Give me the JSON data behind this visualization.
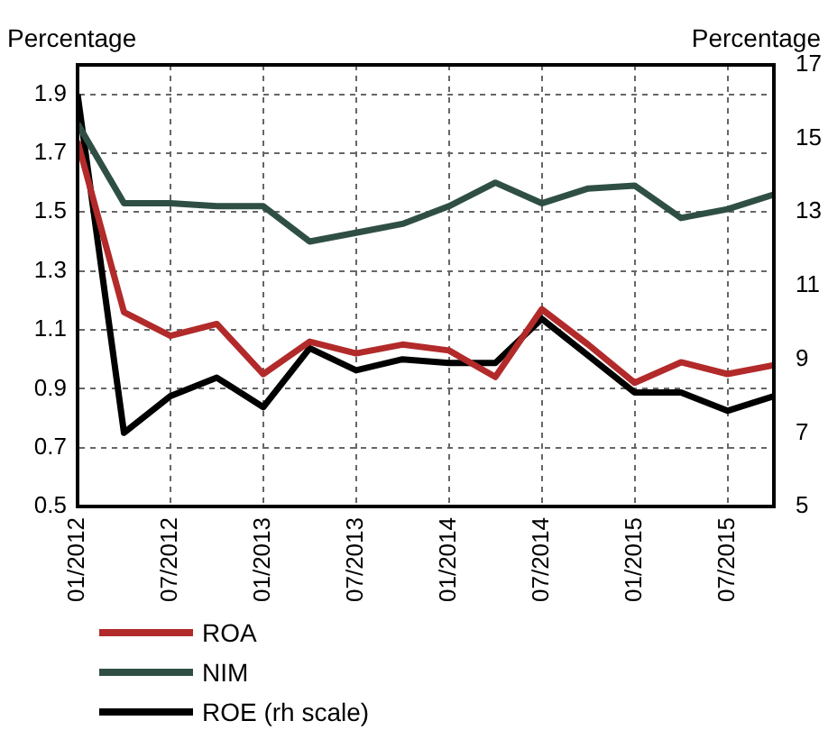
{
  "chart_data": {
    "type": "line",
    "ylabel": "Percentage",
    "y2label": "Percentage",
    "x": [
      "2012-01",
      "2012-04",
      "2012-07",
      "2012-10",
      "2013-01",
      "2013-04",
      "2013-07",
      "2013-10",
      "2014-01",
      "2014-04",
      "2014-07",
      "2014-10",
      "2015-01",
      "2015-04",
      "2015-07",
      "2015-10"
    ],
    "xlim": [
      "2012-01",
      "2015-10"
    ],
    "xticks": [
      {
        "value": "2012-01",
        "label": "01/2012"
      },
      {
        "value": "2012-07",
        "label": "07/2012"
      },
      {
        "value": "2013-01",
        "label": "01/2013"
      },
      {
        "value": "2013-07",
        "label": "07/2013"
      },
      {
        "value": "2014-01",
        "label": "01/2014"
      },
      {
        "value": "2014-07",
        "label": "07/2014"
      },
      {
        "value": "2015-01",
        "label": "01/2015"
      },
      {
        "value": "2015-07",
        "label": "07/2015"
      }
    ],
    "ylim": [
      0.5,
      2.0
    ],
    "yticks": [
      0.5,
      0.7,
      0.9,
      1.1,
      1.3,
      1.5,
      1.7,
      1.9
    ],
    "y2lim": [
      5,
      17
    ],
    "y2ticks": [
      5,
      7,
      9,
      11,
      13,
      15,
      17
    ],
    "series": [
      {
        "name": "ROA",
        "color": "#b22a2a",
        "values": [
          1.74,
          1.16,
          1.08,
          1.12,
          0.95,
          1.06,
          1.02,
          1.05,
          1.03,
          0.94,
          1.17,
          1.05,
          0.92,
          0.99,
          0.95,
          0.98
        ]
      },
      {
        "name": "NIM",
        "color": "#2f4f45",
        "values": [
          1.8,
          1.53,
          1.53,
          1.52,
          1.52,
          1.4,
          1.43,
          1.46,
          1.52,
          1.6,
          1.53,
          1.58,
          1.59,
          1.48,
          1.51,
          1.56
        ]
      },
      {
        "name": "ROE (rh scale)",
        "color": "#000000",
        "axis": "y2",
        "values": [
          16.2,
          7.0,
          8.0,
          8.5,
          7.7,
          9.3,
          8.7,
          9.0,
          8.9,
          8.9,
          10.1,
          9.1,
          8.1,
          8.1,
          7.6,
          8.0
        ]
      }
    ],
    "grid": true,
    "legend": "bottom",
    "marker": "none",
    "line_style": "solid"
  }
}
